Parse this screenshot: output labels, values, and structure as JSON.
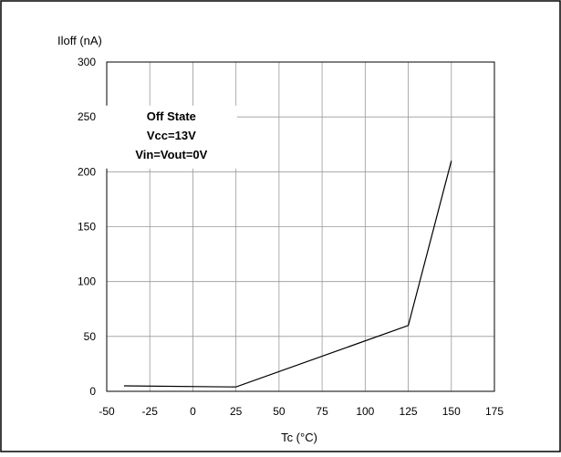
{
  "chart_data": {
    "type": "line",
    "ylabel": "Iloff (nA)",
    "xlabel": "Tc (°C)",
    "xlim": [
      -50,
      175
    ],
    "ylim": [
      0,
      300
    ],
    "xticks": [
      -50,
      -25,
      0,
      25,
      50,
      75,
      100,
      125,
      150,
      175
    ],
    "yticks": [
      0,
      50,
      100,
      150,
      200,
      250,
      300
    ],
    "grid": true,
    "annotation": {
      "lines": [
        "Off State",
        "Vcc=13V",
        "Vin=Vout=0V"
      ],
      "x": -12.5,
      "y": 247
    },
    "series": [
      {
        "x": [
          -40,
          25,
          125,
          150
        ],
        "y": [
          5,
          4,
          60,
          210
        ]
      }
    ]
  },
  "colors": {
    "line": "#000000",
    "grid": "#999999",
    "frame": "#000000",
    "text": "#000000"
  }
}
